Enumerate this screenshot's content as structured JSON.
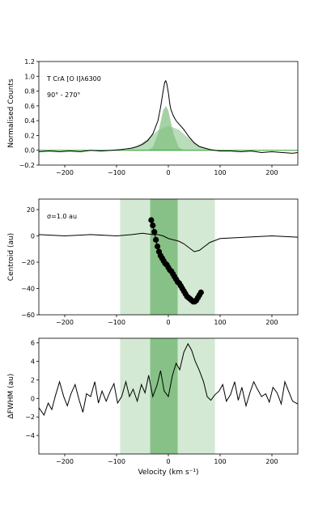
{
  "chart_data": [
    {
      "type": "line",
      "title": "",
      "annotations": [
        "T CrA [O I]λ6300",
        "90° - 270°"
      ],
      "xlabel": "",
      "ylabel": "Normalised Counts",
      "xlim": [
        -250,
        250
      ],
      "ylim": [
        -0.2,
        1.2
      ],
      "xticks": [
        -200,
        -100,
        0,
        100,
        200
      ],
      "yticks": [
        -0.2,
        0.0,
        0.2,
        0.4,
        0.6,
        0.8,
        1.0,
        1.2
      ],
      "ytick_labels": [
        "−0.2",
        "0.0",
        "0.2",
        "0.4",
        "0.6",
        "0.8",
        "1.0",
        "1.2"
      ],
      "xtick_labels": [
        "−200",
        "−100",
        "0",
        "100",
        "200"
      ],
      "colors": {
        "fill": "#7fbf7f",
        "line": "#000000",
        "baseline": "#2ca02c"
      },
      "series": [
        {
          "kind": "observed",
          "x": [
            -250,
            -230,
            -210,
            -190,
            -170,
            -150,
            -130,
            -110,
            -90,
            -80,
            -70,
            -60,
            -50,
            -40,
            -30,
            -20,
            -15,
            -10,
            -7,
            -5,
            -3,
            0,
            3,
            5,
            10,
            15,
            20,
            30,
            40,
            50,
            60,
            70,
            80,
            90,
            100,
            120,
            140,
            160,
            180,
            200,
            220,
            240,
            250
          ],
          "y": [
            -0.02,
            -0.01,
            -0.02,
            -0.01,
            -0.02,
            0.0,
            -0.01,
            0.0,
            0.01,
            0.02,
            0.03,
            0.05,
            0.08,
            0.13,
            0.22,
            0.4,
            0.58,
            0.8,
            0.92,
            0.94,
            0.9,
            0.78,
            0.62,
            0.55,
            0.46,
            0.4,
            0.36,
            0.28,
            0.18,
            0.1,
            0.05,
            0.03,
            0.01,
            0.0,
            -0.01,
            -0.01,
            -0.02,
            -0.01,
            -0.03,
            -0.02,
            -0.03,
            -0.04,
            -0.03
          ]
        },
        {
          "kind": "broad-gaussian",
          "x": [
            -80,
            -60,
            -40,
            -20,
            0,
            20,
            40,
            60,
            80
          ],
          "y": [
            0.02,
            0.06,
            0.15,
            0.27,
            0.33,
            0.28,
            0.16,
            0.06,
            0.02
          ]
        },
        {
          "kind": "narrow-gaussian",
          "x": [
            -40,
            -30,
            -20,
            -10,
            -5,
            0,
            10,
            20,
            30
          ],
          "y": [
            0.0,
            0.04,
            0.22,
            0.54,
            0.6,
            0.54,
            0.22,
            0.04,
            0.0
          ]
        }
      ]
    },
    {
      "type": "line",
      "title": "",
      "annotations": [
        "σ=1.0 au"
      ],
      "xlabel": "",
      "ylabel": "Centroid (au)",
      "xlim": [
        -250,
        250
      ],
      "ylim": [
        -60,
        28
      ],
      "xticks": [
        -200,
        -100,
        0,
        100,
        200
      ],
      "yticks": [
        -60,
        -40,
        -20,
        0,
        20
      ],
      "ytick_labels": [
        "−60",
        "−40",
        "−20",
        "0",
        "20"
      ],
      "xtick_labels": [
        "−200",
        "−100",
        "0",
        "100",
        "200"
      ],
      "shaded_regions": [
        {
          "x": [
            -93,
            90
          ],
          "shade": "light"
        },
        {
          "x": [
            -35,
            18
          ],
          "shade": "dark"
        }
      ],
      "colors": {
        "light": "#d3e9d3",
        "dark": "#87c187",
        "line": "#000000"
      },
      "series": [
        {
          "kind": "line",
          "x": [
            -250,
            -200,
            -150,
            -100,
            -70,
            -50,
            -30,
            -20,
            -10,
            0,
            10,
            20,
            30,
            40,
            50,
            60,
            70,
            80,
            100,
            150,
            200,
            250
          ],
          "y": [
            1,
            0,
            1,
            0,
            1,
            2,
            1,
            1,
            0,
            -2,
            -3,
            -4,
            -6,
            -9,
            -12,
            -11,
            -8,
            -5,
            -2,
            -1,
            0,
            -1
          ]
        },
        {
          "kind": "points",
          "x": [
            -33,
            -30,
            -27,
            -24,
            -21,
            -18,
            -15,
            -12,
            -9,
            -6,
            -3,
            0,
            3,
            6,
            9,
            12,
            15,
            18,
            21,
            24,
            27,
            30,
            33,
            36,
            39,
            42,
            45,
            48,
            51,
            54,
            57,
            60,
            63
          ],
          "y": [
            12,
            8,
            3,
            -3,
            -8,
            -12,
            -15,
            -17,
            -19,
            -21,
            -22,
            -24,
            -26,
            -27,
            -29,
            -31,
            -33,
            -35,
            -36,
            -38,
            -40,
            -42,
            -44,
            -46,
            -47,
            -48,
            -49,
            -50,
            -50,
            -49,
            -47,
            -45,
            -43
          ]
        }
      ]
    },
    {
      "type": "line",
      "title": "",
      "annotations": [],
      "xlabel": "Velocity (km s⁻¹)",
      "ylabel": "ΔFWHM (au)",
      "xlim": [
        -250,
        250
      ],
      "ylim": [
        -6,
        6.5
      ],
      "xticks": [
        -200,
        -100,
        0,
        100,
        200
      ],
      "yticks": [
        -4,
        -2,
        0,
        2,
        4,
        6
      ],
      "ytick_labels": [
        "−4",
        "−2",
        "0",
        "2",
        "4",
        "6"
      ],
      "xtick_labels": [
        "−200",
        "−100",
        "0",
        "100",
        "200"
      ],
      "shaded_regions": [
        {
          "x": [
            -93,
            90
          ],
          "shade": "light"
        },
        {
          "x": [
            -35,
            18
          ],
          "shade": "dark"
        }
      ],
      "colors": {
        "light": "#d3e9d3",
        "dark": "#87c187",
        "line": "#000000"
      },
      "series": [
        {
          "kind": "line",
          "x": [
            -250,
            -240,
            -232,
            -225,
            -218,
            -210,
            -202,
            -195,
            -188,
            -180,
            -172,
            -165,
            -158,
            -150,
            -142,
            -135,
            -128,
            -120,
            -112,
            -105,
            -98,
            -90,
            -82,
            -75,
            -68,
            -60,
            -52,
            -45,
            -38,
            -30,
            -22,
            -15,
            -8,
            0,
            8,
            15,
            22,
            30,
            38,
            45,
            52,
            60,
            68,
            75,
            82,
            90,
            98,
            105,
            112,
            120,
            128,
            135,
            142,
            150,
            158,
            165,
            172,
            180,
            188,
            195,
            202,
            210,
            218,
            225,
            232,
            240,
            250
          ],
          "y": [
            -1,
            -1.8,
            -0.5,
            -1.2,
            0.3,
            1.8,
            0.2,
            -0.8,
            0.5,
            1.5,
            -0.2,
            -1.5,
            0.5,
            0.2,
            1.8,
            -0.5,
            0.8,
            -0.3,
            0.8,
            1.6,
            -0.5,
            0.2,
            1.8,
            0.2,
            1,
            -0.3,
            1.5,
            0.6,
            2.5,
            0.2,
            1.4,
            3,
            0.8,
            0.2,
            2.5,
            3.8,
            3.1,
            5,
            5.9,
            5.2,
            4,
            3,
            1.8,
            0.2,
            -0.2,
            0.4,
            0.8,
            1.5,
            -0.3,
            0.4,
            1.8,
            -0.2,
            1.2,
            -0.8,
            0.7,
            1.8,
            1,
            0.2,
            0.5,
            -0.4,
            1.2,
            0.6,
            -0.6,
            1.8,
            0.8,
            -0.3,
            -0.6
          ]
        }
      ]
    }
  ]
}
